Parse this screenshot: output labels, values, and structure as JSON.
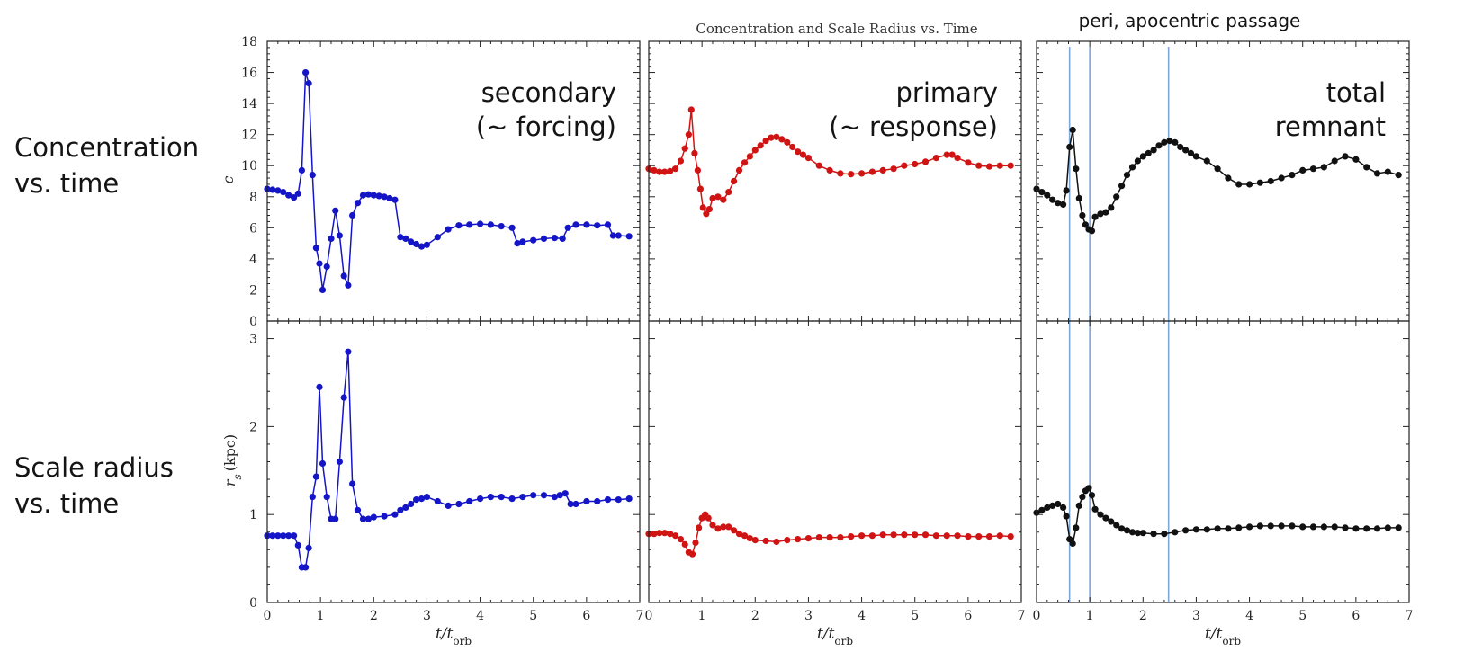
{
  "row_labels": {
    "concentration": "Concentration\nvs. time",
    "scale_radius": "Scale radius\nvs. time"
  },
  "colors": {
    "secondary": "#1515c8",
    "primary": "#d01414",
    "total": "#111111",
    "passage_lines": "#7ea6d6",
    "axes": "#222222"
  },
  "chart_data": {
    "type": "line",
    "title": "Concentration and Scale Radius vs. Time",
    "xlabel": "t/t_orb",
    "xlim": [
      0,
      7
    ],
    "x_ticks": [
      0,
      1,
      2,
      3,
      4,
      5,
      6,
      7
    ],
    "annotation": "peri, apocentric passage",
    "passage_times": [
      0.62,
      1.0,
      2.48
    ],
    "rows": [
      {
        "id": "concentration",
        "ylabel": "c",
        "ylim": [
          0,
          18
        ],
        "y_ticks": [
          0,
          2,
          4,
          6,
          8,
          10,
          12,
          14,
          16,
          18
        ]
      },
      {
        "id": "scale_radius",
        "ylabel": "r_s (kpc)",
        "ylim": [
          0,
          3.2
        ],
        "y_ticks": [
          0,
          1,
          2,
          3
        ]
      }
    ],
    "panels": [
      {
        "id": "secondary",
        "label_lines": [
          "secondary",
          "(~ forcing)"
        ],
        "color": "#1515c8",
        "series": {
          "concentration": {
            "x": [
              0,
              0.1,
              0.2,
              0.3,
              0.4,
              0.5,
              0.58,
              0.65,
              0.72,
              0.78,
              0.85,
              0.92,
              0.98,
              1.04,
              1.12,
              1.2,
              1.28,
              1.36,
              1.44,
              1.52,
              1.6,
              1.7,
              1.8,
              1.9,
              2.0,
              2.1,
              2.2,
              2.3,
              2.4,
              2.5,
              2.6,
              2.7,
              2.8,
              2.9,
              3.0,
              3.2,
              3.4,
              3.6,
              3.8,
              4.0,
              4.2,
              4.4,
              4.6,
              4.7,
              4.8,
              5.0,
              5.2,
              5.4,
              5.55,
              5.65,
              5.8,
              6.0,
              6.2,
              6.4,
              6.5,
              6.6,
              6.8
            ],
            "y": [
              8.5,
              8.45,
              8.4,
              8.3,
              8.1,
              7.95,
              8.2,
              9.7,
              16.0,
              15.3,
              9.4,
              4.7,
              3.7,
              2.0,
              3.5,
              5.3,
              7.1,
              5.5,
              2.9,
              2.3,
              6.8,
              7.6,
              8.1,
              8.15,
              8.1,
              8.05,
              8.0,
              7.9,
              7.8,
              5.4,
              5.3,
              5.1,
              4.95,
              4.8,
              4.9,
              5.4,
              5.9,
              6.15,
              6.2,
              6.25,
              6.2,
              6.1,
              6.0,
              5.0,
              5.1,
              5.2,
              5.3,
              5.35,
              5.3,
              6.0,
              6.2,
              6.2,
              6.15,
              6.2,
              5.5,
              5.5,
              5.45
            ]
          },
          "scale_radius": {
            "x": [
              0,
              0.1,
              0.2,
              0.3,
              0.4,
              0.5,
              0.58,
              0.65,
              0.72,
              0.78,
              0.85,
              0.92,
              0.98,
              1.04,
              1.12,
              1.2,
              1.28,
              1.36,
              1.44,
              1.52,
              1.6,
              1.7,
              1.8,
              1.9,
              2.0,
              2.2,
              2.4,
              2.5,
              2.6,
              2.7,
              2.8,
              2.9,
              3.0,
              3.2,
              3.4,
              3.6,
              3.8,
              4.0,
              4.2,
              4.4,
              4.6,
              4.8,
              5.0,
              5.2,
              5.4,
              5.5,
              5.6,
              5.7,
              5.8,
              6.0,
              6.2,
              6.4,
              6.6,
              6.8
            ],
            "y": [
              0.76,
              0.76,
              0.76,
              0.76,
              0.76,
              0.76,
              0.65,
              0.4,
              0.4,
              0.62,
              1.2,
              1.43,
              2.45,
              1.58,
              1.2,
              0.95,
              0.95,
              1.6,
              2.33,
              2.85,
              1.35,
              1.05,
              0.95,
              0.95,
              0.97,
              0.98,
              1.0,
              1.05,
              1.08,
              1.12,
              1.17,
              1.18,
              1.2,
              1.15,
              1.1,
              1.12,
              1.15,
              1.18,
              1.2,
              1.2,
              1.18,
              1.2,
              1.22,
              1.22,
              1.2,
              1.22,
              1.24,
              1.12,
              1.12,
              1.15,
              1.15,
              1.17,
              1.17,
              1.18
            ]
          }
        }
      },
      {
        "id": "primary",
        "label_lines": [
          "primary",
          "(~ response)"
        ],
        "color": "#d01414",
        "series": {
          "concentration": {
            "x": [
              0,
              0.1,
              0.2,
              0.3,
              0.4,
              0.5,
              0.6,
              0.68,
              0.75,
              0.8,
              0.86,
              0.92,
              0.97,
              1.02,
              1.08,
              1.14,
              1.2,
              1.3,
              1.4,
              1.5,
              1.6,
              1.7,
              1.8,
              1.9,
              2.0,
              2.1,
              2.2,
              2.3,
              2.4,
              2.5,
              2.6,
              2.7,
              2.8,
              2.9,
              3.0,
              3.2,
              3.4,
              3.6,
              3.8,
              4.0,
              4.2,
              4.4,
              4.6,
              4.8,
              5.0,
              5.2,
              5.4,
              5.6,
              5.7,
              5.8,
              6.0,
              6.2,
              6.4,
              6.6,
              6.8
            ],
            "y": [
              9.8,
              9.7,
              9.6,
              9.6,
              9.65,
              9.8,
              10.3,
              11.1,
              12.0,
              13.6,
              10.8,
              9.7,
              8.5,
              7.3,
              6.9,
              7.2,
              7.9,
              8.0,
              7.8,
              8.3,
              9.0,
              9.7,
              10.2,
              10.6,
              11.0,
              11.3,
              11.6,
              11.8,
              11.85,
              11.7,
              11.5,
              11.2,
              10.9,
              10.7,
              10.5,
              10.0,
              9.7,
              9.5,
              9.45,
              9.5,
              9.6,
              9.7,
              9.8,
              10.0,
              10.1,
              10.25,
              10.5,
              10.7,
              10.7,
              10.5,
              10.2,
              10.0,
              9.95,
              10.0,
              10.0
            ]
          },
          "scale_radius": {
            "x": [
              0,
              0.1,
              0.2,
              0.3,
              0.4,
              0.5,
              0.6,
              0.68,
              0.75,
              0.82,
              0.88,
              0.94,
              1.0,
              1.06,
              1.12,
              1.2,
              1.3,
              1.4,
              1.5,
              1.6,
              1.7,
              1.8,
              1.9,
              2.0,
              2.2,
              2.4,
              2.6,
              2.8,
              3.0,
              3.2,
              3.4,
              3.6,
              3.8,
              4.0,
              4.2,
              4.4,
              4.6,
              4.8,
              5.0,
              5.2,
              5.4,
              5.6,
              5.8,
              6.0,
              6.2,
              6.4,
              6.6,
              6.8
            ],
            "y": [
              0.78,
              0.78,
              0.79,
              0.79,
              0.78,
              0.76,
              0.72,
              0.66,
              0.57,
              0.55,
              0.68,
              0.85,
              0.96,
              1.0,
              0.96,
              0.88,
              0.84,
              0.86,
              0.86,
              0.82,
              0.78,
              0.76,
              0.73,
              0.71,
              0.7,
              0.69,
              0.71,
              0.72,
              0.73,
              0.74,
              0.74,
              0.74,
              0.75,
              0.76,
              0.76,
              0.77,
              0.77,
              0.77,
              0.77,
              0.77,
              0.76,
              0.76,
              0.76,
              0.75,
              0.75,
              0.75,
              0.76,
              0.75
            ]
          }
        }
      },
      {
        "id": "total",
        "label_lines": [
          "total",
          "remnant"
        ],
        "color": "#111111",
        "series": {
          "concentration": {
            "x": [
              0,
              0.1,
              0.2,
              0.3,
              0.4,
              0.5,
              0.56,
              0.62,
              0.68,
              0.74,
              0.8,
              0.86,
              0.92,
              0.98,
              1.04,
              1.1,
              1.2,
              1.3,
              1.4,
              1.5,
              1.6,
              1.7,
              1.8,
              1.9,
              2.0,
              2.1,
              2.2,
              2.3,
              2.4,
              2.5,
              2.6,
              2.7,
              2.8,
              2.9,
              3.0,
              3.2,
              3.4,
              3.6,
              3.8,
              4.0,
              4.2,
              4.4,
              4.6,
              4.8,
              5.0,
              5.2,
              5.4,
              5.6,
              5.8,
              6.0,
              6.2,
              6.4,
              6.6,
              6.8
            ],
            "y": [
              8.5,
              8.3,
              8.1,
              7.8,
              7.6,
              7.5,
              8.4,
              11.2,
              12.3,
              9.8,
              7.9,
              6.8,
              6.2,
              5.9,
              5.8,
              6.7,
              6.9,
              7.0,
              7.3,
              8.0,
              8.7,
              9.4,
              9.9,
              10.3,
              10.6,
              10.8,
              11.0,
              11.3,
              11.5,
              11.6,
              11.5,
              11.2,
              11.0,
              10.8,
              10.6,
              10.3,
              9.8,
              9.2,
              8.8,
              8.8,
              8.9,
              9.0,
              9.2,
              9.4,
              9.7,
              9.8,
              9.9,
              10.3,
              10.6,
              10.4,
              9.9,
              9.5,
              9.6,
              9.4
            ]
          },
          "scale_radius": {
            "x": [
              0,
              0.1,
              0.2,
              0.3,
              0.4,
              0.5,
              0.56,
              0.62,
              0.68,
              0.74,
              0.8,
              0.86,
              0.92,
              0.98,
              1.04,
              1.1,
              1.2,
              1.3,
              1.4,
              1.5,
              1.6,
              1.7,
              1.8,
              1.9,
              2.0,
              2.2,
              2.4,
              2.6,
              2.8,
              3.0,
              3.2,
              3.4,
              3.6,
              3.8,
              4.0,
              4.2,
              4.4,
              4.6,
              4.8,
              5.0,
              5.2,
              5.4,
              5.6,
              5.8,
              6.0,
              6.2,
              6.4,
              6.6,
              6.8
            ],
            "y": [
              1.02,
              1.05,
              1.08,
              1.1,
              1.12,
              1.08,
              0.98,
              0.72,
              0.67,
              0.85,
              1.1,
              1.2,
              1.27,
              1.3,
              1.22,
              1.06,
              1.0,
              0.96,
              0.92,
              0.88,
              0.84,
              0.82,
              0.8,
              0.79,
              0.79,
              0.78,
              0.78,
              0.8,
              0.82,
              0.83,
              0.83,
              0.84,
              0.84,
              0.85,
              0.86,
              0.87,
              0.87,
              0.87,
              0.87,
              0.86,
              0.86,
              0.86,
              0.86,
              0.85,
              0.84,
              0.84,
              0.84,
              0.85,
              0.85
            ]
          }
        }
      }
    ]
  }
}
